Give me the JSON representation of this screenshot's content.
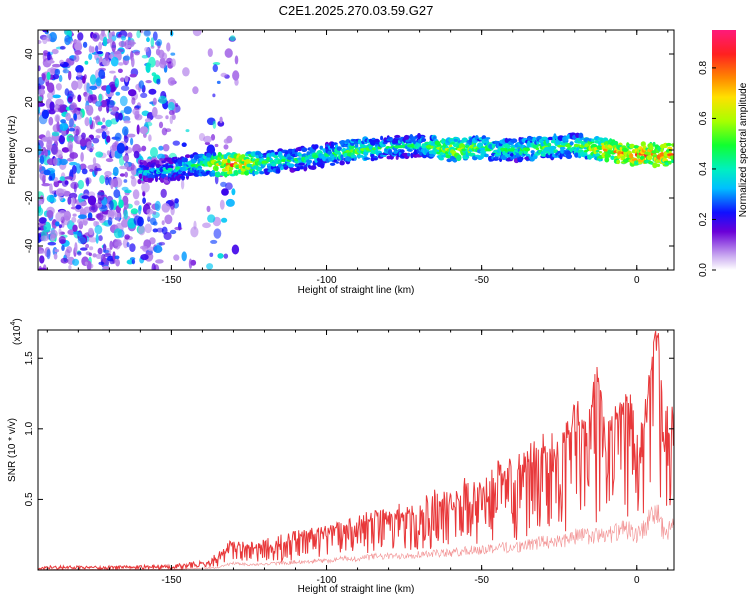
{
  "figure_title": "C2E1.2025.270.03.59.G27",
  "colors": {
    "snr_line": "#e8383a",
    "axis": "#000000"
  },
  "chart_data": [
    {
      "type": "heatmap",
      "title": "C2E1.2025.270.03.59.G27",
      "xlabel": "Height of straight line (km)",
      "ylabel": "Frequency (Hz)",
      "xlim": [
        -193,
        12
      ],
      "ylim": [
        -50,
        50
      ],
      "xticks": [
        -150,
        -100,
        -50,
        0
      ],
      "xtick_labels": [
        "-150",
        "-100",
        "-50",
        "0"
      ],
      "yticks": [
        40,
        20,
        0,
        -20,
        -40
      ],
      "ytick_labels": [
        "40",
        "20",
        "0",
        "-20",
        "-40"
      ],
      "colorbar": {
        "label": "Normalized spectral amplitude",
        "range": [
          0,
          0.95
        ],
        "ticks": [
          0.0,
          0.2,
          0.4,
          0.6,
          0.8
        ],
        "tick_labels": [
          "0.0",
          "0.2",
          "0.4",
          "0.6",
          "0.8"
        ],
        "colormap": "rainbow"
      },
      "signal_track": {
        "x": [
          -155,
          -140,
          -130,
          -120,
          -110,
          -100,
          -90,
          -80,
          -70,
          -60,
          -50,
          -40,
          -30,
          -20,
          -10,
          0,
          12
        ],
        "frequency": [
          -9,
          -6,
          -6,
          -5,
          -4,
          -2,
          0,
          1,
          2,
          0,
          1,
          0,
          1,
          2,
          0,
          -2,
          -2
        ],
        "amplitude": [
          0.4,
          0.55,
          0.9,
          0.55,
          0.5,
          0.5,
          0.6,
          0.5,
          0.5,
          0.7,
          0.6,
          0.5,
          0.6,
          0.55,
          0.8,
          0.9,
          0.85
        ]
      },
      "noise_region": {
        "x_from": -193,
        "x_to": -138
      }
    },
    {
      "type": "line",
      "xlabel": "Height of straight line (km)",
      "ylabel": "SNR (10 * v/v)",
      "y_multiplier_label": "(x10",
      "y_multiplier_exp": "4",
      "xlim": [
        -193,
        12
      ],
      "ylim": [
        0,
        1.7
      ],
      "xticks": [
        -150,
        -100,
        -50,
        0
      ],
      "xtick_labels": [
        "-150",
        "-100",
        "-50",
        "0"
      ],
      "yticks": [
        0.5,
        1.0,
        1.5
      ],
      "ytick_labels": [
        "0.5",
        "1.0",
        "1.5"
      ],
      "series": [
        {
          "name": "SNR",
          "x": [
            -193,
            -180,
            -170,
            -160,
            -150,
            -145,
            -140,
            -135,
            -131,
            -125,
            -120,
            -115,
            -110,
            -105,
            -100,
            -95,
            -90,
            -85,
            -80,
            -75,
            -70,
            -65,
            -60,
            -55,
            -50,
            -45,
            -40,
            -35,
            -30,
            -25,
            -20,
            -15,
            -13,
            -10,
            -5,
            -2,
            0,
            3,
            6,
            7,
            9,
            12
          ],
          "values": [
            0.015,
            0.015,
            0.02,
            0.02,
            0.02,
            0.03,
            0.05,
            0.08,
            0.17,
            0.15,
            0.14,
            0.17,
            0.2,
            0.25,
            0.24,
            0.3,
            0.3,
            0.35,
            0.35,
            0.37,
            0.38,
            0.45,
            0.4,
            0.55,
            0.5,
            0.62,
            0.6,
            0.7,
            0.8,
            0.75,
            1.05,
            1.0,
            1.45,
            0.9,
            1.05,
            1.2,
            0.6,
            0.95,
            1.7,
            1.6,
            0.75,
            1.05
          ],
          "envelope_upper": [
            0.03,
            0.03,
            0.03,
            0.035,
            0.04,
            0.05,
            0.08,
            0.12,
            0.22,
            0.2,
            0.22,
            0.25,
            0.28,
            0.3,
            0.32,
            0.35,
            0.4,
            0.42,
            0.45,
            0.48,
            0.5,
            0.58,
            0.55,
            0.7,
            0.68,
            0.78,
            0.8,
            0.88,
            1.0,
            0.95,
            1.2,
            1.2,
            1.48,
            1.1,
            1.2,
            1.3,
            1.1,
            1.3,
            1.7,
            1.7,
            1.2,
            1.15
          ],
          "envelope_lower": [
            0.005,
            0.005,
            0.005,
            0.005,
            0.005,
            0.01,
            0.015,
            0.02,
            0.06,
            0.05,
            0.05,
            0.06,
            0.07,
            0.08,
            0.08,
            0.1,
            0.1,
            0.12,
            0.12,
            0.13,
            0.14,
            0.15,
            0.15,
            0.17,
            0.18,
            0.2,
            0.2,
            0.22,
            0.25,
            0.25,
            0.3,
            0.3,
            0.3,
            0.3,
            0.35,
            0.35,
            0.3,
            0.4,
            0.5,
            0.5,
            0.3,
            0.45
          ]
        }
      ]
    }
  ]
}
